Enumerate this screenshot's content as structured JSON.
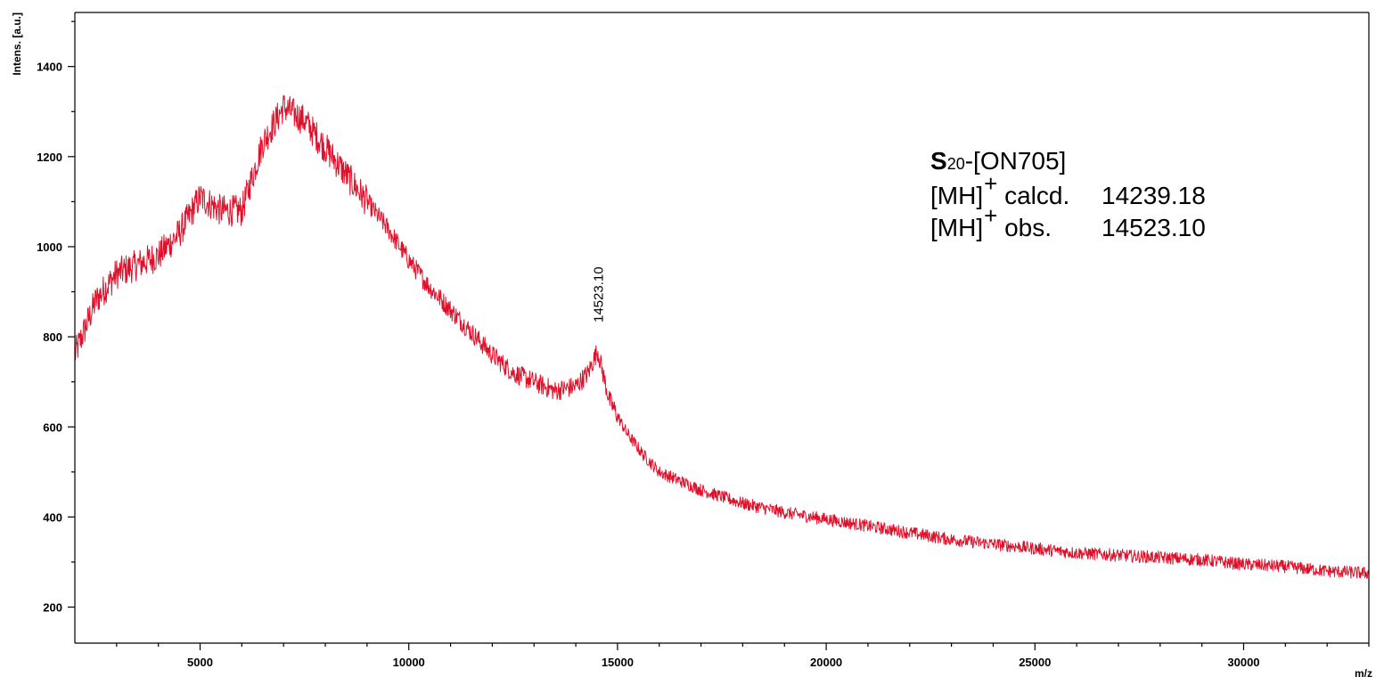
{
  "chart_data": {
    "type": "line",
    "xlabel": "m/z",
    "ylabel": "Intens. [a.u.]",
    "xlim": [
      2000,
      33000
    ],
    "ylim": [
      120,
      1520
    ],
    "x_ticks": [
      5000,
      10000,
      15000,
      20000,
      25000,
      30000
    ],
    "x_tick_labels": [
      "5000",
      "10000",
      "15000",
      "20000",
      "25000",
      "30000"
    ],
    "y_ticks": [
      200,
      400,
      600,
      800,
      1000,
      1200,
      1400
    ],
    "y_tick_labels": [
      "200",
      "400",
      "600",
      "800",
      "1000",
      "1200",
      "1400"
    ],
    "grid": false,
    "series": [
      {
        "color": "#e0102a",
        "x": [
          2000,
          2500,
          3000,
          3500,
          4000,
          4500,
          5000,
          5500,
          6000,
          6500,
          7000,
          7500,
          8000,
          8500,
          9000,
          9500,
          10000,
          10500,
          11000,
          11500,
          12000,
          12500,
          13000,
          13500,
          14000,
          14300,
          14523,
          14800,
          15200,
          15600,
          16000,
          16500,
          17000,
          18000,
          19000,
          20000,
          21000,
          22000,
          23000,
          24000,
          25000,
          26000,
          27000,
          28000,
          29000,
          30000,
          31000,
          32000,
          33000
        ],
        "values": [
          760,
          880,
          940,
          960,
          980,
          1030,
          1110,
          1080,
          1080,
          1230,
          1310,
          1280,
          1220,
          1160,
          1100,
          1040,
          970,
          910,
          860,
          810,
          760,
          720,
          700,
          680,
          690,
          720,
          770,
          660,
          590,
          540,
          500,
          480,
          460,
          430,
          410,
          395,
          380,
          365,
          350,
          340,
          330,
          320,
          315,
          310,
          305,
          295,
          290,
          280,
          275
        ]
      }
    ],
    "peak_label": {
      "x": 14523.1,
      "y": 820,
      "text": "14523.10"
    }
  },
  "annotation": {
    "name_bold": "S",
    "name_sub": "20",
    "name_rest": "-[ON705]",
    "calcd_prefix": "[MH]",
    "calcd_sup": "+",
    "calcd_label": " calcd.",
    "calcd_value": "14239.18",
    "obs_prefix": "[MH]",
    "obs_sup": "+",
    "obs_label": " obs.",
    "obs_value": "14523.10"
  },
  "colors": {
    "trace": "#e0102a"
  }
}
